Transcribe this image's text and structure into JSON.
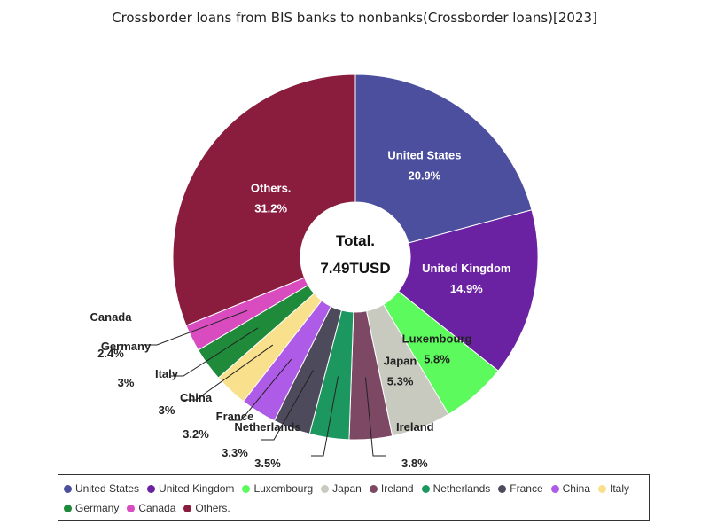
{
  "title": "Crossborder loans from BIS banks to nonbanks(Crossborder loans)[2023]",
  "center": {
    "line1": "Total.",
    "line2": "7.49TUSD"
  },
  "chart_data": {
    "type": "pie",
    "title": "Crossborder loans from BIS banks to nonbanks(Crossborder loans)[2023]",
    "donut": true,
    "total_label": "Total.",
    "total_value": "7.49TUSD",
    "slices": [
      {
        "name": "United States",
        "value": 20.9,
        "label": "20.9%",
        "color": "#4c4f9e"
      },
      {
        "name": "United Kingdom",
        "value": 14.9,
        "label": "14.9%",
        "color": "#6a22a2"
      },
      {
        "name": "Luxembourg",
        "value": 5.8,
        "label": "5.8%",
        "color": "#5cfa5c"
      },
      {
        "name": "Japan",
        "value": 5.3,
        "label": "5.3%",
        "color": "#c8cac0"
      },
      {
        "name": "Ireland",
        "value": 3.8,
        "label": "3.8%",
        "color": "#7d4864"
      },
      {
        "name": "Netherlands",
        "value": 3.5,
        "label": "3.5%",
        "color": "#1d9760"
      },
      {
        "name": "France",
        "value": 3.3,
        "label": "3.3%",
        "color": "#4d4a5c"
      },
      {
        "name": "China",
        "value": 3.2,
        "label": "3.2%",
        "color": "#ae5be8"
      },
      {
        "name": "Italy",
        "value": 3,
        "label": "3%",
        "color": "#f8e08c"
      },
      {
        "name": "Germany",
        "value": 3,
        "label": "3%",
        "color": "#1e8a3a"
      },
      {
        "name": "Canada",
        "value": 2.4,
        "label": "2.4%",
        "color": "#d94cc0"
      },
      {
        "name": "Others.",
        "value": 31.2,
        "label": "31.2%",
        "color": "#8a1d3e"
      }
    ],
    "legend": "bottom"
  },
  "legend_rows": [
    [
      "United States",
      "United Kingdom",
      "Luxembourg",
      "Japan",
      "Ireland",
      "Netherlands",
      "France",
      "China",
      "Italy"
    ],
    [
      "Germany",
      "Canada",
      "Others."
    ]
  ]
}
